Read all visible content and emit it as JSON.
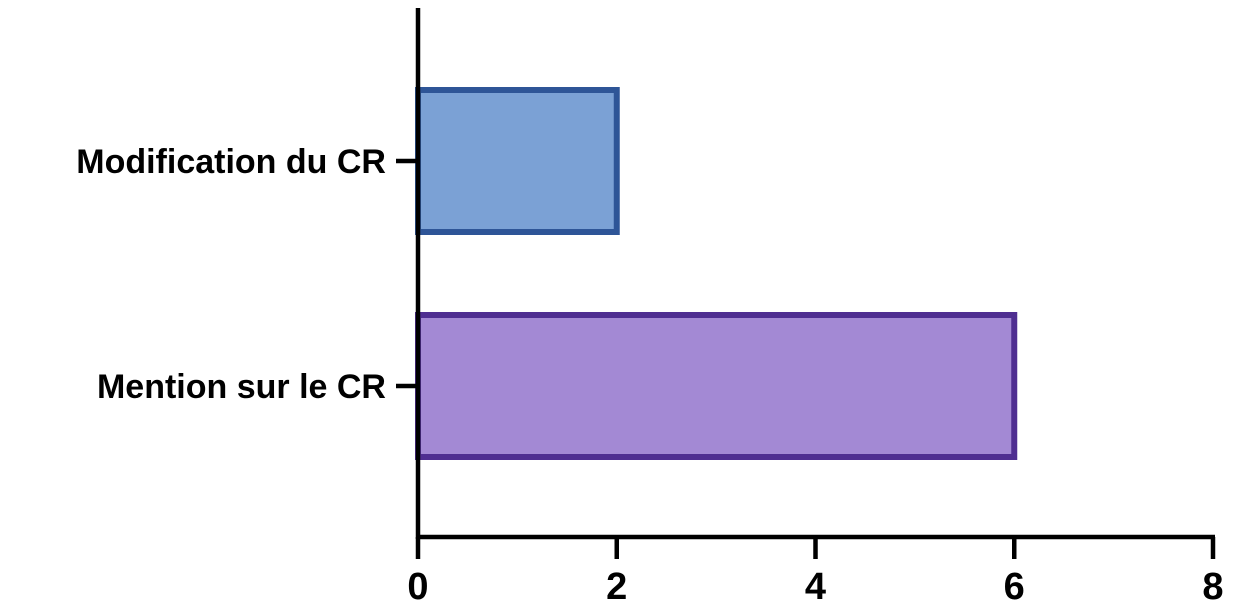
{
  "chart_data": {
    "type": "bar",
    "orientation": "horizontal",
    "categories": [
      "Modification du CR",
      "Mention sur le CR"
    ],
    "values": [
      2,
      6
    ],
    "title": "",
    "xlabel": "",
    "ylabel": "",
    "xlim": [
      0,
      8
    ],
    "x_ticks": [
      0,
      2,
      4,
      6,
      8
    ],
    "grid": false,
    "legend": "none",
    "colors": {
      "fills": [
        "#7ba1d5",
        "#a389d4"
      ],
      "strokes": [
        "#2e5597",
        "#4f2e91"
      ],
      "axis": "#000000"
    }
  }
}
